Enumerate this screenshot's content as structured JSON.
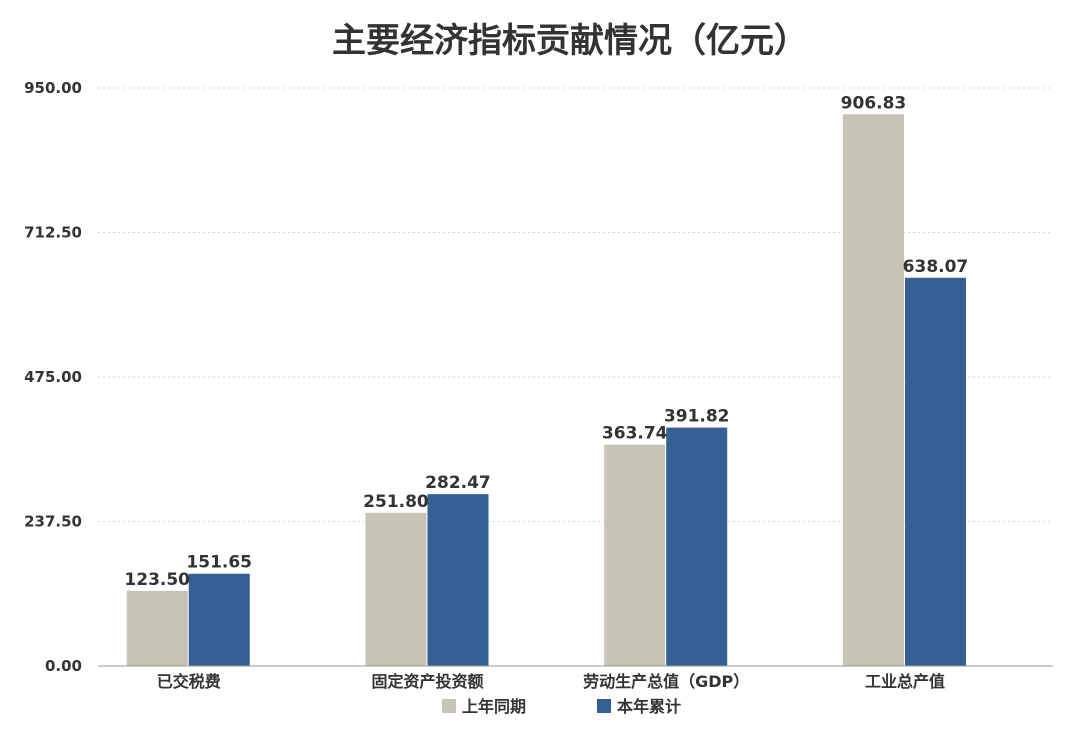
{
  "chart_data": {
    "type": "bar",
    "title": "主要经济指标贡献情况（亿元）",
    "categories": [
      "已交税费",
      "固定资产投资额",
      "劳动生产总值（GDP）",
      "工业总产值"
    ],
    "series": [
      {
        "name": "上年同期",
        "color": "#c7c3b5",
        "values": [
          123.5,
          251.8,
          363.74,
          906.83
        ],
        "labels": [
          "123.50",
          "251.80",
          "363.74",
          "906.83"
        ]
      },
      {
        "name": "本年累计",
        "color": "#365f93",
        "values": [
          151.65,
          282.47,
          391.82,
          638.07
        ],
        "labels": [
          "151.65",
          "282.47",
          "391.82",
          "638.07"
        ]
      }
    ],
    "ylim": [
      0,
      950
    ],
    "yticks": [
      0,
      237.5,
      475,
      712.5,
      950
    ],
    "ytick_labels": [
      "0.00",
      "237.50",
      "475.00",
      "712.50",
      "950.00"
    ],
    "grid": true,
    "legend_position": "bottom"
  }
}
